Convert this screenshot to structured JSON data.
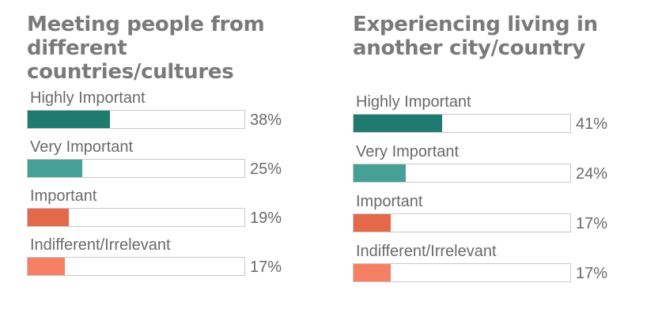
{
  "colors": {
    "highly_important": "#1f7a70",
    "very_important": "#46a096",
    "important": "#e4694b",
    "indifferent": "#f58064"
  },
  "chart_data": [
    {
      "type": "bar",
      "title": "Meeting people from\ndifferent\ncountries/cultures",
      "categories": [
        "Highly Important",
        "Very Important",
        "Important",
        "Indifferent/Irrelevant"
      ],
      "values": [
        38,
        25,
        19,
        17
      ],
      "value_labels": [
        "38%",
        "25%",
        "19%",
        "17%"
      ],
      "ylim": [
        0,
        100
      ]
    },
    {
      "type": "bar",
      "title": "Experiencing living in\nanother city/country",
      "categories": [
        "Highly Important",
        "Very Important",
        "Important",
        "Indifferent/Irrelevant"
      ],
      "values": [
        41,
        24,
        17,
        17
      ],
      "value_labels": [
        "41%",
        "24%",
        "17%",
        "17%"
      ],
      "ylim": [
        0,
        100
      ]
    }
  ]
}
